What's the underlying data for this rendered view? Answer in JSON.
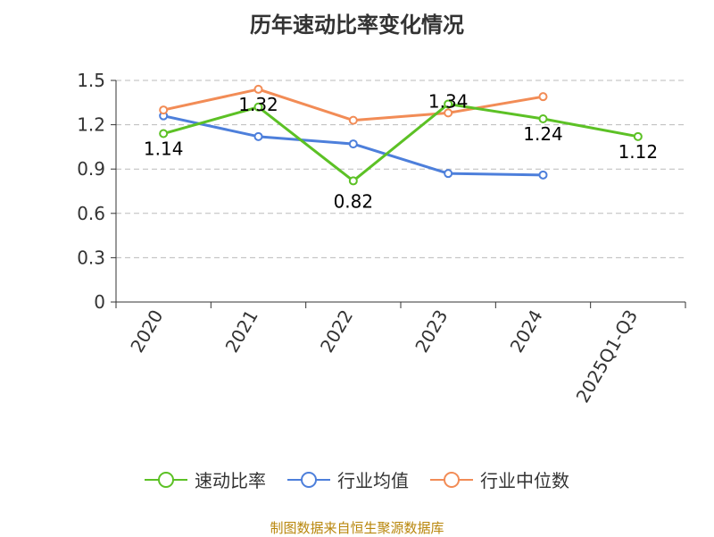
{
  "title": "历年速动比率变化情况",
  "source_note": "制图数据来自恒生聚源数据库",
  "colors": {
    "series_1": "#5cc125",
    "series_2": "#4d7fdb",
    "series_3": "#f28c56",
    "axis": "#333333",
    "grid": "#bbbbbb",
    "text": "#333333",
    "source": "#b8860b"
  },
  "chart_data": {
    "type": "line",
    "title": "历年速动比率变化情况",
    "categories": [
      "2020",
      "2021",
      "2022",
      "2023",
      "2024",
      "2025Q1-Q3"
    ],
    "ylim": [
      0,
      1.5
    ],
    "yticks": [
      0,
      0.3,
      0.6,
      0.9,
      1.2,
      1.5
    ],
    "ytick_labels": [
      "0",
      "0.3",
      "0.6",
      "0.9",
      "1.2",
      "1.5"
    ],
    "grid": true,
    "legend_position": "bottom",
    "series": [
      {
        "name": "速动比率",
        "values": [
          1.14,
          1.32,
          0.82,
          1.34,
          1.24,
          1.12
        ],
        "labels": [
          "1.14",
          "1.32",
          "0.82",
          "1.34",
          "1.24",
          "1.12"
        ],
        "color": "#5cc125"
      },
      {
        "name": "行业均值",
        "values": [
          1.26,
          1.12,
          1.07,
          0.87,
          0.86,
          null
        ],
        "color": "#4d7fdb"
      },
      {
        "name": "行业中位数",
        "values": [
          1.3,
          1.44,
          1.23,
          1.28,
          1.39,
          null
        ],
        "color": "#f28c56"
      }
    ]
  }
}
